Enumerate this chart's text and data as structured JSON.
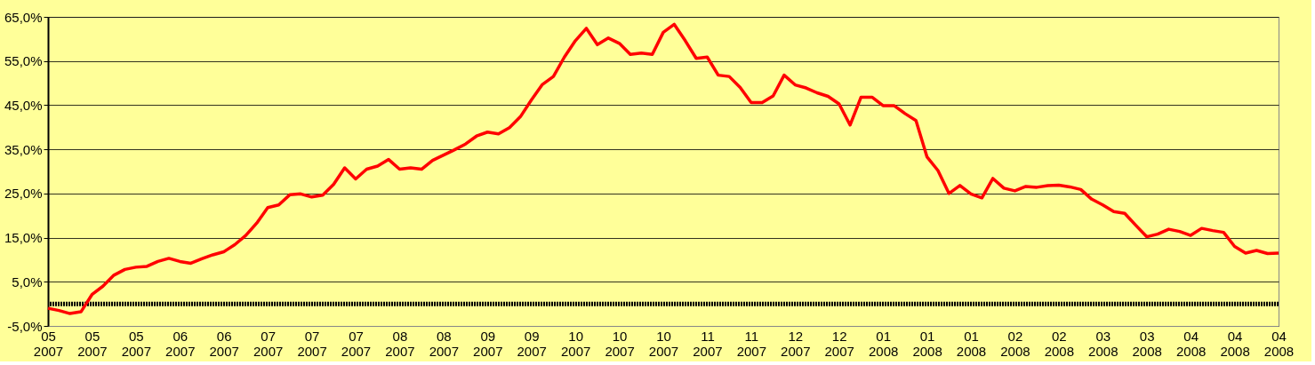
{
  "chart_data": {
    "type": "line",
    "categories": [
      "05\n2007",
      null,
      null,
      null,
      "05\n2007",
      null,
      null,
      null,
      "05\n2007",
      null,
      null,
      null,
      "06\n2007",
      null,
      null,
      null,
      "06\n2007",
      null,
      null,
      null,
      "07\n2007",
      null,
      null,
      null,
      "07\n2007",
      null,
      null,
      null,
      "07\n2007",
      null,
      null,
      null,
      "08\n2007",
      null,
      null,
      null,
      "08\n2007",
      null,
      null,
      null,
      "09\n2007",
      null,
      null,
      null,
      "09\n2007",
      null,
      null,
      null,
      "10\n2007",
      null,
      null,
      null,
      "10\n2007",
      null,
      null,
      null,
      "10\n2007",
      null,
      null,
      null,
      "11\n2007",
      null,
      null,
      null,
      "11\n2007",
      null,
      null,
      null,
      "12\n2007",
      null,
      null,
      null,
      "12\n2007",
      null,
      null,
      null,
      "01\n2008",
      null,
      null,
      null,
      "01\n2008",
      null,
      null,
      null,
      "01\n2008",
      null,
      null,
      null,
      "02\n2008",
      null,
      null,
      null,
      "02\n2008",
      null,
      null,
      null,
      "03\n2008",
      null,
      null,
      null,
      "03\n2008",
      null,
      null,
      null,
      "04\n2008",
      null,
      null,
      null,
      "04\n2008",
      null,
      null,
      null,
      "04\n2008"
    ],
    "series": [
      {
        "color": "#ff0000",
        "values": [
          -1.0,
          -1.5,
          -2.2,
          -1.8,
          2.1,
          4.0,
          6.5,
          7.8,
          8.3,
          8.5,
          9.6,
          10.3,
          9.6,
          9.2,
          10.2,
          11.1,
          11.8,
          13.4,
          15.5,
          18.3,
          21.8,
          22.4,
          24.7,
          24.9,
          24.2,
          24.6,
          27.1,
          30.8,
          28.3,
          30.5,
          31.2,
          32.7,
          30.5,
          30.8,
          30.5,
          32.5,
          33.7,
          34.9,
          36.2,
          38.0,
          38.9,
          38.5,
          39.9,
          42.4,
          46.2,
          49.7,
          51.5,
          55.9,
          59.6,
          62.4,
          58.7,
          60.2,
          59.0,
          56.5,
          56.8,
          56.5,
          61.5,
          63.3,
          59.6,
          55.6,
          55.9,
          51.8,
          51.5,
          49.0,
          45.6,
          45.6,
          47.1,
          51.8,
          49.6,
          48.9,
          47.8,
          47.0,
          45.3,
          40.5,
          46.8,
          46.8,
          44.9,
          44.9,
          43.1,
          41.5,
          33.3,
          30.2,
          25.0,
          26.8,
          24.9,
          24.0,
          28.4,
          26.2,
          25.6,
          26.6,
          26.4,
          26.8,
          26.9,
          26.5,
          25.9,
          23.7,
          22.4,
          20.9,
          20.5,
          17.8,
          15.2,
          15.8,
          16.9,
          16.4,
          15.5,
          17.1,
          16.6,
          16.2,
          13.0,
          11.5,
          12.1,
          11.4,
          11.5
        ]
      }
    ],
    "ylim": [
      -5,
      65
    ],
    "yticks": [
      {
        "value": -5,
        "label": "-5,0%"
      },
      {
        "value": 5,
        "label": "5,0%"
      },
      {
        "value": 15,
        "label": "15,0%"
      },
      {
        "value": 25,
        "label": "25,0%"
      },
      {
        "value": 35,
        "label": "35,0%"
      },
      {
        "value": 45,
        "label": "45,0%"
      },
      {
        "value": 55,
        "label": "55,0%"
      },
      {
        "value": 65,
        "label": "65,0%"
      }
    ],
    "ref_lines": [
      {
        "axis": "y",
        "value": 0,
        "color": "#000000"
      }
    ],
    "grid": "y"
  }
}
